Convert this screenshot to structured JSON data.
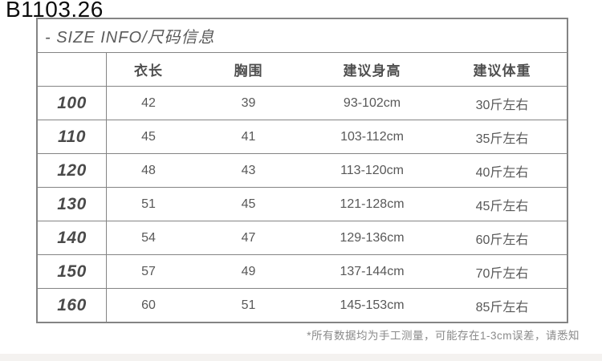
{
  "product_code": "B1103.26",
  "size_chart": {
    "title": "- SIZE INFO/尺码信息",
    "columns": [
      "",
      "衣长",
      "胸围",
      "建议身高",
      "建议体重"
    ],
    "rows": [
      {
        "size": "100",
        "length": "42",
        "chest": "39",
        "height": "93-102cm",
        "weight": "30斤左右"
      },
      {
        "size": "110",
        "length": "45",
        "chest": "41",
        "height": "103-112cm",
        "weight": "35斤左右"
      },
      {
        "size": "120",
        "length": "48",
        "chest": "43",
        "height": "113-120cm",
        "weight": "40斤左右"
      },
      {
        "size": "130",
        "length": "51",
        "chest": "45",
        "height": "121-128cm",
        "weight": "45斤左右"
      },
      {
        "size": "140",
        "length": "54",
        "chest": "47",
        "height": "129-136cm",
        "weight": "60斤左右"
      },
      {
        "size": "150",
        "length": "57",
        "chest": "49",
        "height": "137-144cm",
        "weight": "70斤左右"
      },
      {
        "size": "160",
        "length": "60",
        "chest": "51",
        "height": "145-153cm",
        "weight": "85斤左右"
      }
    ],
    "footnote": "*所有数据均为手工测量，可能存在1-3cm误差，请悉知"
  },
  "chart_data": {
    "type": "table",
    "title": "- SIZE INFO/尺码信息",
    "columns": [
      "",
      "衣长",
      "胸围",
      "建议身高",
      "建议体重"
    ],
    "rows": [
      [
        "100",
        "42",
        "39",
        "93-102cm",
        "30斤左右"
      ],
      [
        "110",
        "45",
        "41",
        "103-112cm",
        "35斤左右"
      ],
      [
        "120",
        "48",
        "43",
        "113-120cm",
        "40斤左右"
      ],
      [
        "130",
        "51",
        "45",
        "121-128cm",
        "45斤左右"
      ],
      [
        "140",
        "54",
        "47",
        "129-136cm",
        "60斤左右"
      ],
      [
        "150",
        "57",
        "49",
        "137-144cm",
        "70斤左右"
      ],
      [
        "160",
        "60",
        "51",
        "145-153cm",
        "85斤左右"
      ]
    ],
    "footnote": "*所有数据均为手工测量，可能存在1-3cm误差，请悉知"
  },
  "colors": {
    "border": "#848484",
    "body_text": "#585858",
    "heading_text": "#0d0d0d",
    "footnote_text": "#8a8a8a",
    "bottom_band": "#f4f2f0"
  }
}
